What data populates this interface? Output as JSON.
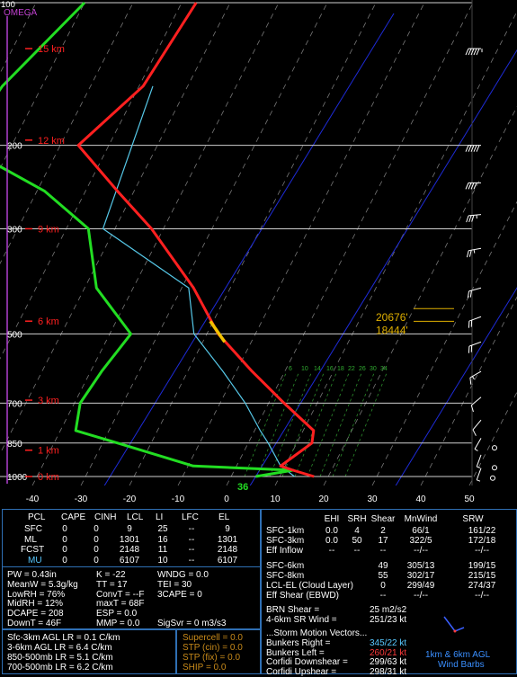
{
  "chart_data": {
    "type": "line",
    "title": "",
    "omega_label": "OMEGA",
    "omega_top_value": "100",
    "xlabel": "",
    "ylabel": "",
    "x_ticks": [
      "-40",
      "-30",
      "-20",
      "-10",
      "0",
      "10",
      "20",
      "30",
      "40",
      "50"
    ],
    "xlim": [
      -40,
      50
    ],
    "pressure_ticks": [
      "100",
      "200",
      "300",
      "500",
      "700",
      "850",
      "1000"
    ],
    "ylim_mb": [
      1000,
      100
    ],
    "y_scale": "log",
    "height_labels": [
      "15 km",
      "12 km",
      "9 km",
      "6 km",
      "3 km",
      "1 km",
      "0 km"
    ],
    "height_label_pressures": [
      125,
      195,
      300,
      470,
      690,
      880,
      1000
    ],
    "surface_value_label": "36",
    "temperature_profile": {
      "color": "#ff2020",
      "points": [
        [
          -57,
          100
        ],
        [
          -59,
          150
        ],
        [
          -66,
          200
        ],
        [
          -53,
          250
        ],
        [
          -42,
          300
        ],
        [
          -27,
          400
        ],
        [
          -17,
          500
        ],
        [
          -6,
          600
        ],
        [
          4,
          700
        ],
        [
          13,
          800
        ],
        [
          14,
          850
        ],
        [
          10,
          950
        ],
        [
          13,
          970
        ],
        [
          18,
          1000
        ]
      ]
    },
    "dewpoint_profile": {
      "color": "#22dd22",
      "points": [
        [
          -80,
          100
        ],
        [
          -88,
          150
        ],
        [
          -90,
          200
        ],
        [
          -68,
          250
        ],
        [
          -55,
          300
        ],
        [
          -47,
          400
        ],
        [
          -35,
          500
        ],
        [
          -37,
          600
        ],
        [
          -38,
          700
        ],
        [
          -36,
          800
        ],
        [
          -26,
          850
        ],
        [
          -8,
          950
        ],
        [
          13,
          970
        ],
        [
          6,
          1000
        ]
      ]
    },
    "parcel_profile": {
      "color": "#56c8e8",
      "points": [
        [
          -57,
          150
        ],
        [
          -52,
          300
        ],
        [
          -28,
          400
        ],
        [
          -22,
          500
        ],
        [
          -12,
          600
        ],
        [
          -4,
          700
        ],
        [
          2,
          800
        ],
        [
          5,
          850
        ],
        [
          10,
          950
        ],
        [
          14,
          1000
        ]
      ]
    },
    "freezing_highlight_pressures": [
      470,
      520
    ],
    "level_markers": [
      {
        "label": "20676'",
        "pressure": 470
      },
      {
        "label": "18444'",
        "pressure": 500
      }
    ],
    "mixing_ratio_labels": [
      "6",
      "10",
      "14",
      "16",
      "18",
      "22",
      "26",
      "30",
      "34"
    ],
    "wind_barbs": [
      {
        "pressure": 125,
        "dir": 270,
        "kt": 55
      },
      {
        "pressure": 200,
        "dir": 270,
        "kt": 50
      },
      {
        "pressure": 240,
        "dir": 270,
        "kt": 40
      },
      {
        "pressure": 280,
        "dir": 265,
        "kt": 35
      },
      {
        "pressure": 330,
        "dir": 260,
        "kt": 25
      },
      {
        "pressure": 400,
        "dir": 255,
        "kt": 20
      },
      {
        "pressure": 460,
        "dir": 250,
        "kt": 20
      },
      {
        "pressure": 520,
        "dir": 250,
        "kt": 20
      },
      {
        "pressure": 600,
        "dir": 240,
        "kt": 15
      },
      {
        "pressure": 680,
        "dir": 230,
        "kt": 10
      },
      {
        "pressure": 760,
        "dir": 220,
        "kt": 10
      },
      {
        "pressure": 830,
        "dir": 210,
        "kt": 5
      },
      {
        "pressure": 900,
        "dir": 200,
        "kt": 5
      },
      {
        "pressure": 960,
        "dir": 200,
        "kt": 5
      }
    ],
    "hodograph_caption": [
      "1km & 6km AGL",
      "Wind Barbs"
    ]
  },
  "parcel_table": {
    "headers": [
      "PCL",
      "CAPE",
      "CINH",
      "LCL",
      "LI",
      "LFC",
      "EL"
    ],
    "rows": [
      [
        "SFC",
        "0",
        "0",
        "9",
        "25",
        "--",
        "9"
      ],
      [
        "ML",
        "0",
        "0",
        "1301",
        "16",
        "--",
        "1301"
      ],
      [
        "FCST",
        "0",
        "0",
        "2148",
        "11",
        "--",
        "2148"
      ],
      [
        "MU",
        "0",
        "0",
        "6107",
        "10",
        "--",
        "6107"
      ]
    ]
  },
  "indices": [
    [
      "PW = 0.43in",
      "K = -22",
      "WNDG = 0.0"
    ],
    [
      "MeanW = 5.3g/kg",
      "TT = 17",
      "TEI = 30"
    ],
    [
      "LowRH = 76%",
      "ConvT = --F",
      "3CAPE = 0"
    ],
    [
      "MidRH = 12%",
      "maxT = 68F",
      ""
    ],
    [
      "DCAPE = 208",
      "ESP = 0.0",
      ""
    ],
    [
      "DownT = 46F",
      "MMP = 0.0",
      "SigSvr = 0 m3/s3"
    ]
  ],
  "lapse_rates": [
    "Sfc-3km AGL LR = 0.1 C/km",
    "3-6km AGL LR = 6.4 C/km",
    "850-500mb LR = 5.1 C/km",
    "700-500mb LR = 6.2 C/km"
  ],
  "composite": [
    "Supercell = 0.0",
    "STP (cin) = 0.0",
    "STP (fix) = 0.0",
    "SHIP = 0.0"
  ],
  "shear_table": {
    "headers": [
      "EHI",
      "SRH",
      "Shear",
      "MnWind",
      "SRW"
    ],
    "rows": [
      [
        "SFC-1km",
        "0.0",
        "4",
        "2",
        "66/1",
        "161/22"
      ],
      [
        "SFC-3km",
        "0.0",
        "50",
        "17",
        "322/5",
        "172/18"
      ],
      [
        "Eff Inflow",
        "--",
        "--",
        "--",
        "--/--",
        "--/--"
      ],
      [
        "SFC-6km",
        "",
        "",
        "49",
        "305/13",
        "199/15"
      ],
      [
        "SFC-8km",
        "",
        "",
        "55",
        "302/17",
        "215/15"
      ],
      [
        "LCL-EL (Cloud Layer)",
        "",
        "",
        "0",
        "299/49",
        "274/37"
      ],
      [
        "Eff Shear (EBWD)",
        "",
        "",
        "--",
        "--/--",
        "--/--"
      ]
    ]
  },
  "brn": [
    "BRN Shear =",
    "25 m2/s2"
  ],
  "sr_wind": [
    "4-6km SR Wind =",
    "251/23 kt"
  ],
  "storm_motion": {
    "title": "...Storm Motion Vectors...",
    "rows": [
      [
        "Bunkers Right =",
        "345/22 kt"
      ],
      [
        "Bunkers Left =",
        "260/21 kt"
      ],
      [
        "Corfidi Downshear =",
        "299/63 kt"
      ],
      [
        "Corfidi Upshear =",
        "298/31 kt"
      ]
    ]
  }
}
